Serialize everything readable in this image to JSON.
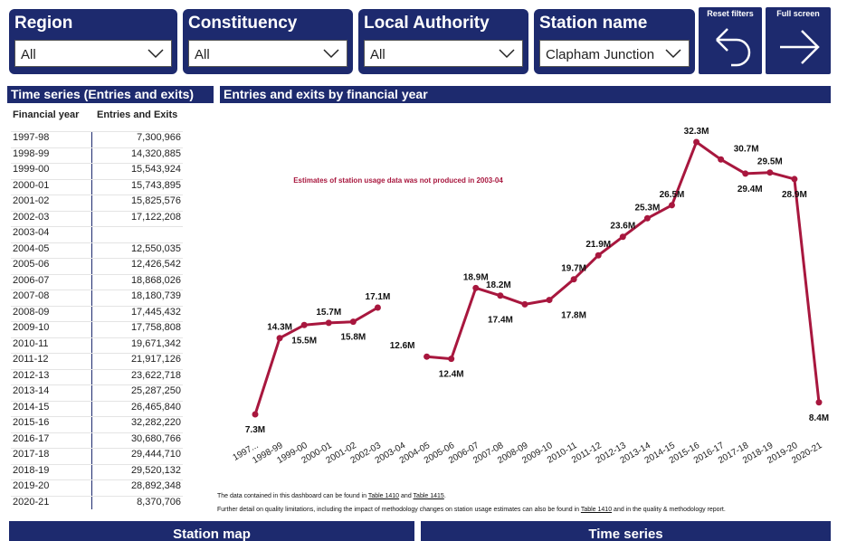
{
  "filters": [
    {
      "label": "Region",
      "value": "All"
    },
    {
      "label": "Constituency",
      "value": "All"
    },
    {
      "label": "Local Authority",
      "value": "All"
    },
    {
      "label": "Station name",
      "value": "Clapham Junction"
    }
  ],
  "buttons": [
    "Reset filters",
    "Full screen"
  ],
  "table": {
    "title": "Time series (Entries and exits)",
    "columns": [
      "Financial year",
      "Entries and Exits"
    ],
    "rows": [
      [
        "1997-98",
        "7,300,966"
      ],
      [
        "1998-99",
        "14,320,885"
      ],
      [
        "1999-00",
        "15,543,924"
      ],
      [
        "2000-01",
        "15,743,895"
      ],
      [
        "2001-02",
        "15,825,576"
      ],
      [
        "2002-03",
        "17,122,208"
      ],
      [
        "2003-04",
        null
      ],
      [
        "2004-05",
        "12,550,035"
      ],
      [
        "2005-06",
        "12,426,542"
      ],
      [
        "2006-07",
        "18,868,026"
      ],
      [
        "2007-08",
        "18,180,739"
      ],
      [
        "2008-09",
        "17,445,432"
      ],
      [
        "2009-10",
        "17,758,808"
      ],
      [
        "2010-11",
        "19,671,342"
      ],
      [
        "2011-12",
        "21,917,126"
      ],
      [
        "2012-13",
        "23,622,718"
      ],
      [
        "2013-14",
        "25,287,250"
      ],
      [
        "2014-15",
        "26,465,840"
      ],
      [
        "2015-16",
        "32,282,220"
      ],
      [
        "2016-17",
        "30,680,766"
      ],
      [
        "2017-18",
        "29,444,710"
      ],
      [
        "2018-19",
        "29,520,132"
      ],
      [
        "2019-20",
        "28,892,348"
      ],
      [
        "2020-21",
        "8,370,706"
      ]
    ]
  },
  "chart_data": {
    "type": "line",
    "title": "Entries and exits by financial year",
    "annotation": "Estimates of station usage data was not produced in 2003-04",
    "categories": [
      "1997...",
      "1998-99",
      "1999-00",
      "2000-01",
      "2001-02",
      "2002-03",
      "2003-04",
      "2004-05",
      "2005-06",
      "2006-07",
      "2007-08",
      "2008-09",
      "2009-10",
      "2010-11",
      "2011-12",
      "2012-13",
      "2013-14",
      "2014-15",
      "2015-16",
      "2016-17",
      "2017-18",
      "2018-19",
      "2019-20",
      "2020-21"
    ],
    "values": [
      7.3,
      14.3,
      15.5,
      15.7,
      15.8,
      17.1,
      null,
      12.6,
      12.4,
      18.9,
      18.2,
      17.4,
      17.8,
      19.7,
      21.9,
      23.6,
      25.3,
      26.5,
      32.3,
      30.7,
      29.4,
      29.5,
      28.9,
      8.4
    ],
    "value_labels": [
      "7.3M",
      "14.3M",
      "15.5M",
      "15.7M",
      "15.8M",
      "17.1M",
      null,
      "12.6M",
      "12.4M",
      "18.9M",
      "18.2M",
      "17.4M",
      "17.8M",
      "19.7M",
      "21.9M",
      "23.6M",
      "25.3M",
      "26.5M",
      "32.3M",
      "30.7M",
      "29.4M",
      "29.5M",
      "28.9M",
      "8.4M"
    ],
    "color": "#a8173e"
  },
  "notes": [
    [
      "The data contained in this dashboard can be found in ",
      "Table 1410",
      " and ",
      "Table 1415",
      "."
    ],
    [
      "Further detail on quality limitations, including the impact of methodology changes on station usage estimates can also be found in ",
      "Table 1410",
      " and in the quality & methodology report."
    ]
  ],
  "tabs": [
    "Station map",
    "Time series"
  ]
}
